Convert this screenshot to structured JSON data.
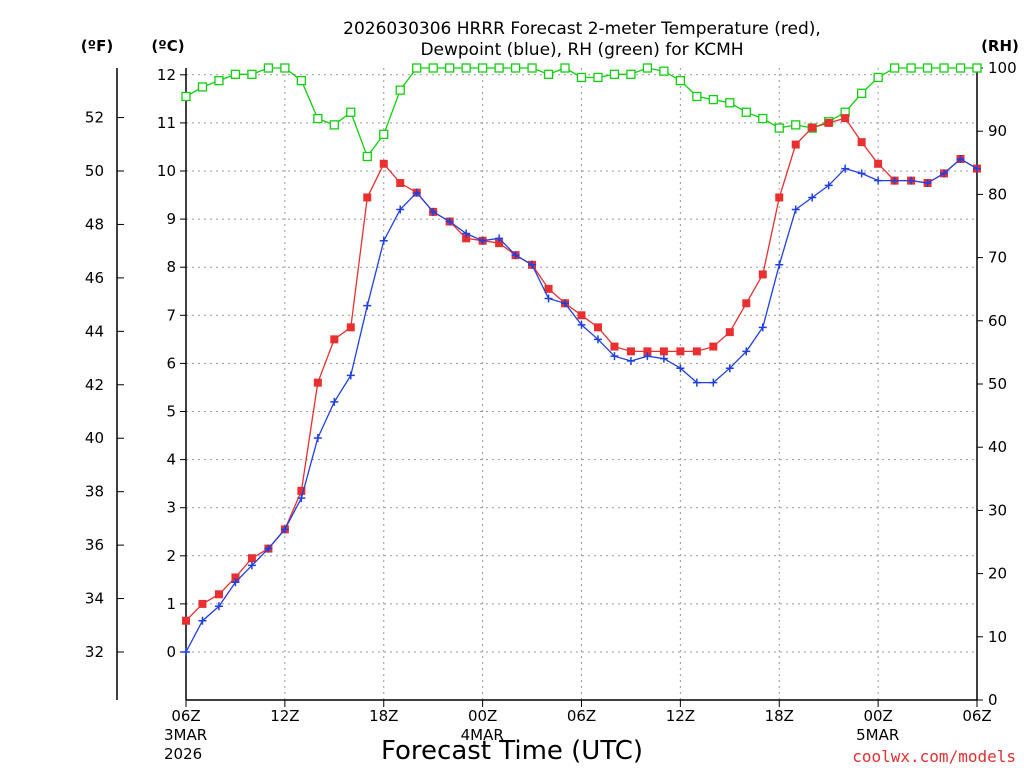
{
  "chart_data": {
    "type": "line",
    "title_line1": "2026030306 HRRR Forecast 2-meter Temperature (red),",
    "title_line2": "Dewpoint (blue), RH (green) for KCMH",
    "xlabel": "Forecast Time (UTC)",
    "credit": "coolwx.com/models",
    "units": {
      "fahrenheit": "(ºF)",
      "celsius": "(ºC)",
      "rh": "(RH)"
    },
    "x_ticks": [
      {
        "hour": 0,
        "label": "06Z",
        "sub1": "3MAR",
        "sub2": "2026"
      },
      {
        "hour": 6,
        "label": "12Z",
        "sub1": "",
        "sub2": ""
      },
      {
        "hour": 12,
        "label": "18Z",
        "sub1": "",
        "sub2": ""
      },
      {
        "hour": 18,
        "label": "00Z",
        "sub1": "4MAR",
        "sub2": ""
      },
      {
        "hour": 24,
        "label": "06Z",
        "sub1": "",
        "sub2": ""
      },
      {
        "hour": 30,
        "label": "12Z",
        "sub1": "",
        "sub2": ""
      },
      {
        "hour": 36,
        "label": "18Z",
        "sub1": "",
        "sub2": ""
      },
      {
        "hour": 42,
        "label": "00Z",
        "sub1": "5MAR",
        "sub2": ""
      },
      {
        "hour": 48,
        "label": "06Z",
        "sub1": "",
        "sub2": ""
      }
    ],
    "xlim_hours": [
      0,
      48
    ],
    "celsius_ticks": [
      "0",
      "1",
      "2",
      "3",
      "4",
      "5",
      "6",
      "7",
      "8",
      "9",
      "10",
      "11",
      "12"
    ],
    "fahrenheit_ticks": [
      "32",
      "34",
      "36",
      "38",
      "40",
      "42",
      "44",
      "46",
      "48",
      "50",
      "52"
    ],
    "rh_ticks": [
      "0",
      "10",
      "20",
      "30",
      "40",
      "50",
      "60",
      "70",
      "80",
      "90",
      "100"
    ],
    "ylim_celsius": [
      -1,
      12.2
    ],
    "ylim_rh": [
      0,
      100
    ],
    "series": [
      {
        "name": "Temperature",
        "unit": "C",
        "color": "#e83030",
        "marker": "square-filled",
        "values": [
          0.65,
          1.0,
          1.2,
          1.55,
          1.95,
          2.15,
          2.55,
          3.35,
          5.6,
          6.5,
          6.75,
          9.45,
          10.15,
          9.75,
          9.55,
          9.15,
          8.95,
          8.6,
          8.55,
          8.5,
          8.25,
          8.05,
          7.55,
          7.25,
          7.0,
          6.75,
          6.35,
          6.25,
          6.25,
          6.25,
          6.25,
          6.25,
          6.35,
          6.65,
          7.25,
          7.85,
          9.45,
          10.55,
          10.9,
          11.0,
          11.1,
          10.6,
          10.15,
          9.8,
          9.8,
          9.75,
          9.95,
          10.25,
          10.05
        ]
      },
      {
        "name": "Dewpoint",
        "unit": "C",
        "color": "#2040e0",
        "marker": "plus",
        "values": [
          0.0,
          0.65,
          0.95,
          1.45,
          1.8,
          2.15,
          2.55,
          3.2,
          4.45,
          5.2,
          5.75,
          7.2,
          8.55,
          9.2,
          9.55,
          9.15,
          8.95,
          8.7,
          8.55,
          8.6,
          8.25,
          8.05,
          7.35,
          7.25,
          6.8,
          6.5,
          6.15,
          6.05,
          6.15,
          6.1,
          5.9,
          5.6,
          5.6,
          5.9,
          6.25,
          6.75,
          8.05,
          9.2,
          9.45,
          9.7,
          10.05,
          9.95,
          9.8,
          9.8,
          9.8,
          9.75,
          9.95,
          10.25,
          10.05
        ]
      },
      {
        "name": "RH",
        "unit": "%",
        "color": "#10d010",
        "marker": "square-open",
        "values": [
          95.5,
          97,
          98,
          99,
          99,
          100,
          100,
          98,
          92,
          91,
          93,
          86,
          89.5,
          96.5,
          100,
          100,
          100,
          100,
          100,
          100,
          100,
          100,
          99,
          100,
          98.5,
          98.5,
          99,
          99,
          100,
          99.5,
          98,
          95.5,
          95,
          94.5,
          93,
          92,
          90.5,
          91,
          90.5,
          91.5,
          93,
          96,
          98.5,
          100,
          100,
          100,
          100,
          100,
          100
        ]
      }
    ]
  }
}
